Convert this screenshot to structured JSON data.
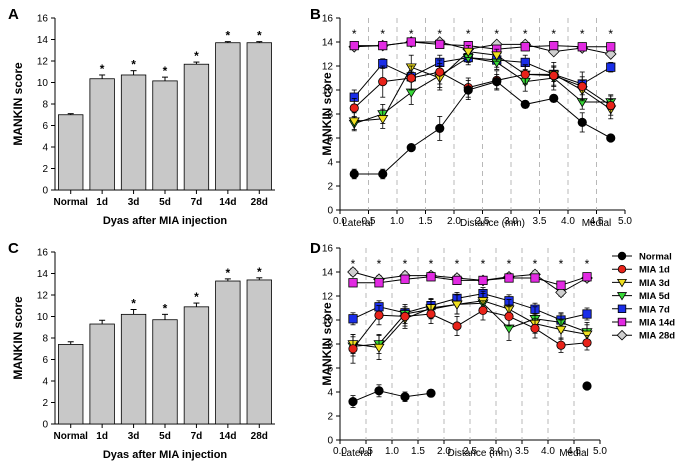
{
  "chart_data": [
    {
      "panel": "A",
      "type": "bar",
      "ylabel": "MANKIN score",
      "xlabel": "Dyas after MIA injection",
      "ylim": [
        0,
        16
      ],
      "yticks": [
        0,
        2,
        4,
        6,
        8,
        10,
        12,
        14,
        16
      ],
      "categories": [
        "Normal",
        "1d",
        "3d",
        "5d",
        "7d",
        "14d",
        "28d"
      ],
      "values": [
        7.0,
        10.35,
        10.7,
        10.15,
        11.7,
        13.7,
        13.7
      ],
      "errors": [
        0.1,
        0.35,
        0.4,
        0.35,
        0.2,
        0.1,
        0.1
      ],
      "significance": [
        "",
        "*",
        "*",
        "*",
        "*",
        "*",
        "*"
      ]
    },
    {
      "panel": "B",
      "type": "line",
      "ylabel": "MANKIN score",
      "xlabel": "Distance (mm)",
      "xlabel_left": "Lateral",
      "xlabel_right": "Medial",
      "xlim": [
        0,
        5
      ],
      "ylim": [
        0,
        16
      ],
      "xticks": [
        0.0,
        0.5,
        1.0,
        1.5,
        2.0,
        2.5,
        3.0,
        3.5,
        4.0,
        4.5,
        5.0
      ],
      "yticks": [
        0,
        2,
        4,
        6,
        8,
        10,
        12,
        14,
        16
      ],
      "x": [
        0.25,
        0.75,
        1.25,
        1.75,
        2.25,
        2.75,
        3.25,
        3.75,
        4.25,
        4.75
      ],
      "series": [
        {
          "name": "Normal",
          "values": [
            3.0,
            3.0,
            5.2,
            6.8,
            10.0,
            10.7,
            8.8,
            9.3,
            7.3,
            6.0
          ],
          "errors": [
            0.4,
            0.4,
            0.2,
            1.0,
            0.8,
            0.6,
            0.3,
            0.3,
            0.8,
            0.2
          ]
        },
        {
          "name": "MIA 1d",
          "values": [
            8.5,
            10.7,
            11.0,
            11.5,
            10.2,
            10.8,
            11.3,
            11.2,
            10.3,
            8.7
          ],
          "errors": [
            0.8,
            1.3,
            1.0,
            1.0,
            0.8,
            0.8,
            0.8,
            0.8,
            1.2,
            0.8
          ]
        },
        {
          "name": "MIA 3d",
          "values": [
            7.4,
            7.6,
            11.9,
            11.0,
            13.2,
            12.9,
            11.3,
            11.3,
            10.0,
            8.4
          ],
          "errors": [
            0.7,
            0.8,
            1.0,
            1.0,
            0.5,
            0.5,
            0.8,
            1.0,
            0.8,
            0.8
          ]
        },
        {
          "name": "MIA 5d",
          "values": [
            7.2,
            8.0,
            9.8,
            11.2,
            12.7,
            12.3,
            10.7,
            11.0,
            9.0,
            9.0
          ],
          "errors": [
            0.6,
            0.8,
            1.0,
            1.0,
            0.6,
            0.6,
            0.8,
            1.0,
            0.6,
            0.6
          ]
        },
        {
          "name": "MIA 7d",
          "values": [
            9.4,
            12.2,
            11.1,
            12.3,
            12.7,
            12.5,
            12.3,
            11.3,
            10.5,
            11.9
          ],
          "errors": [
            0.6,
            0.4,
            0.4,
            0.6,
            0.4,
            0.6,
            0.6,
            0.6,
            0.6,
            0.4
          ]
        },
        {
          "name": "MIA 14d",
          "values": [
            13.7,
            13.7,
            14.0,
            13.8,
            13.7,
            13.4,
            13.6,
            13.7,
            13.6,
            13.6
          ],
          "errors": [
            0.2,
            0.2,
            0.2,
            0.2,
            0.2,
            0.2,
            0.2,
            0.2,
            0.2,
            0.2
          ]
        },
        {
          "name": "MIA 28d",
          "values": [
            13.6,
            13.7,
            14.0,
            14.0,
            13.4,
            13.8,
            13.8,
            13.2,
            13.5,
            13.0
          ],
          "errors": [
            0.2,
            0.2,
            0.2,
            0.2,
            0.2,
            0.2,
            0.2,
            0.2,
            0.2,
            0.2
          ]
        }
      ]
    },
    {
      "panel": "C",
      "type": "bar",
      "ylabel": "MANKIN score",
      "xlabel": "Dyas after MIA injection",
      "ylim": [
        0,
        16
      ],
      "yticks": [
        0,
        2,
        4,
        6,
        8,
        10,
        12,
        14,
        16
      ],
      "categories": [
        "Normal",
        "1d",
        "3d",
        "5d",
        "7d",
        "14d",
        "28d"
      ],
      "values": [
        7.4,
        9.3,
        10.2,
        9.7,
        10.9,
        13.3,
        13.4
      ],
      "errors": [
        0.25,
        0.35,
        0.45,
        0.5,
        0.35,
        0.2,
        0.2
      ],
      "significance": [
        "",
        "",
        "*",
        "*",
        "*",
        "*",
        "*"
      ]
    },
    {
      "panel": "D",
      "type": "line",
      "ylabel": "MANKIN score",
      "xlabel": "Distance (mm)",
      "xlabel_left": "Lateral",
      "xlabel_right": "Medial",
      "xlim": [
        0,
        5
      ],
      "ylim": [
        0,
        16
      ],
      "xticks": [
        0.0,
        0.5,
        1.0,
        1.5,
        2.0,
        2.5,
        3.0,
        3.5,
        4.0,
        4.5,
        5.0
      ],
      "yticks": [
        0,
        2,
        4,
        6,
        8,
        10,
        12,
        14,
        16
      ],
      "x": [
        0.25,
        0.75,
        1.25,
        1.75,
        2.25,
        2.75,
        3.25,
        3.75,
        4.25,
        4.75
      ],
      "series": [
        {
          "name": "Normal",
          "values": [
            3.2,
            4.1,
            3.6,
            3.9,
            null,
            null,
            null,
            null,
            null,
            4.5
          ],
          "errors": [
            0.5,
            0.5,
            0.4,
            0.3,
            0,
            0,
            0,
            0,
            0,
            0.3
          ]
        },
        {
          "name": "MIA 1d",
          "values": [
            7.6,
            10.4,
            10.3,
            10.5,
            9.5,
            10.8,
            10.3,
            9.3,
            7.9,
            8.1
          ],
          "errors": [
            1.2,
            0.8,
            0.8,
            0.8,
            0.8,
            0.8,
            0.8,
            0.8,
            0.6,
            0.6
          ]
        },
        {
          "name": "MIA 3d",
          "values": [
            8.0,
            7.7,
            10.1,
            11.0,
            11.3,
            11.6,
            10.9,
            9.7,
            9.2,
            8.8
          ],
          "errors": [
            0.8,
            1.0,
            0.8,
            0.8,
            0.8,
            0.8,
            0.8,
            0.8,
            0.8,
            0.8
          ]
        },
        {
          "name": "MIA 5d",
          "values": [
            7.8,
            8.0,
            10.5,
            10.9,
            11.3,
            11.4,
            9.3,
            10.1,
            9.8,
            9.0
          ],
          "errors": [
            0.8,
            0.8,
            0.8,
            0.8,
            0.8,
            0.8,
            1.0,
            1.0,
            0.8,
            0.8
          ]
        },
        {
          "name": "MIA 7d",
          "values": [
            10.1,
            11.1,
            10.6,
            11.2,
            11.8,
            12.2,
            11.6,
            10.9,
            10.0,
            10.5
          ],
          "errors": [
            0.5,
            0.5,
            0.5,
            0.5,
            0.5,
            0.5,
            0.5,
            0.5,
            0.5,
            0.5
          ]
        },
        {
          "name": "MIA 14d",
          "values": [
            13.1,
            13.1,
            13.4,
            13.6,
            13.3,
            13.3,
            13.5,
            13.5,
            12.9,
            13.6
          ],
          "errors": [
            0.2,
            0.2,
            0.2,
            0.2,
            0.2,
            0.2,
            0.2,
            0.2,
            0.2,
            0.2
          ]
        },
        {
          "name": "MIA 28d",
          "values": [
            14.0,
            13.4,
            13.7,
            13.7,
            13.5,
            13.3,
            13.6,
            13.8,
            12.3,
            13.5
          ],
          "errors": [
            0.3,
            0.3,
            0.3,
            0.3,
            0.3,
            0.3,
            0.3,
            0.3,
            0.3,
            0.3
          ]
        }
      ],
      "legend": {
        "position": "right",
        "entries": [
          "Normal",
          "MIA 1d",
          "MIA 3d",
          "MIA 5d",
          "MIA 7d",
          "MIA 14d",
          "MIA 28d"
        ]
      }
    }
  ],
  "series_styles": [
    {
      "name": "Normal",
      "color": "#000000",
      "marker": "circle"
    },
    {
      "name": "MIA 1d",
      "color": "#e8231a",
      "marker": "circle"
    },
    {
      "name": "MIA 3d",
      "color": "#f0e020",
      "marker": "triangle-down"
    },
    {
      "name": "MIA 5d",
      "color": "#38d838",
      "marker": "triangle-down"
    },
    {
      "name": "MIA 7d",
      "color": "#1a2ee8",
      "marker": "square"
    },
    {
      "name": "MIA 14d",
      "color": "#e22ae2",
      "marker": "square"
    },
    {
      "name": "MIA 28d",
      "color": "#cfcfcf",
      "marker": "diamond"
    }
  ],
  "panel_labels": [
    "A",
    "B",
    "C",
    "D"
  ],
  "bar_color": "#c8c8c8"
}
